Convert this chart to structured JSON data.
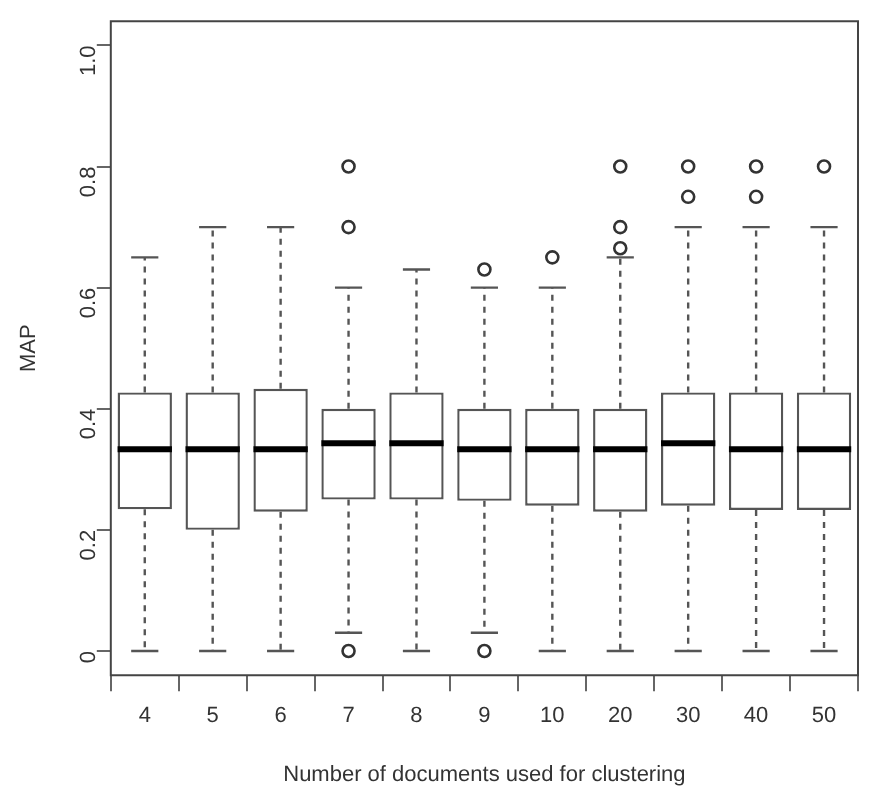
{
  "chart_data": {
    "type": "box",
    "xlabel": "Number of documents used for clustering",
    "ylabel": "MAP",
    "categories": [
      "4",
      "5",
      "6",
      "7",
      "8",
      "9",
      "10",
      "20",
      "30",
      "40",
      "50"
    ],
    "ylim": [
      -0.04,
      1.04
    ],
    "yticks": [
      0,
      {
        "value": 0.2,
        "label": "0.2"
      },
      {
        "value": 0.4,
        "label": "0.4"
      },
      {
        "value": 0.6,
        "label": "0.6"
      },
      {
        "value": 0.8,
        "label": "0.8"
      },
      {
        "value": 1,
        "label": "1.0"
      }
    ],
    "grid": false,
    "legend": false,
    "color": "#555555",
    "boxes": [
      {
        "low": 0,
        "q1": 0.234,
        "median": 0.333,
        "q3": 0.427,
        "high": 0.65
      },
      {
        "low": 0,
        "q1": 0.2,
        "median": 0.333,
        "q3": 0.427,
        "high": 0.7
      },
      {
        "low": 0,
        "q1": 0.23,
        "median": 0.333,
        "q3": 0.433,
        "high": 0.7
      },
      {
        "low": 0.03,
        "q1": 0.25,
        "median": 0.343,
        "q3": 0.4,
        "high": 0.6,
        "outliers": [
          0,
          0.7,
          0.8
        ]
      },
      {
        "low": 0,
        "q1": 0.25,
        "median": 0.343,
        "q3": 0.427,
        "high": 0.63
      },
      {
        "low": 0.03,
        "q1": 0.248,
        "median": 0.333,
        "q3": 0.4,
        "high": 0.6,
        "outliers": [
          0,
          0.63
        ]
      },
      {
        "low": 0,
        "q1": 0.24,
        "median": 0.333,
        "q3": 0.4,
        "high": 0.6,
        "outliers": [
          0.65
        ]
      },
      {
        "low": 0,
        "q1": 0.23,
        "median": 0.333,
        "q3": 0.4,
        "high": 0.65,
        "outliers": [
          0.665,
          0.7,
          0.8
        ]
      },
      {
        "low": 0,
        "q1": 0.24,
        "median": 0.343,
        "q3": 0.427,
        "high": 0.7,
        "outliers": [
          0.75,
          0.8
        ]
      },
      {
        "low": 0,
        "q1": 0.233,
        "median": 0.333,
        "q3": 0.427,
        "high": 0.7,
        "outliers": [
          0.75,
          0.8
        ]
      },
      {
        "low": 0,
        "q1": 0.233,
        "median": 0.333,
        "q3": 0.427,
        "high": 0.7,
        "outliers": [
          0.8
        ]
      }
    ]
  }
}
